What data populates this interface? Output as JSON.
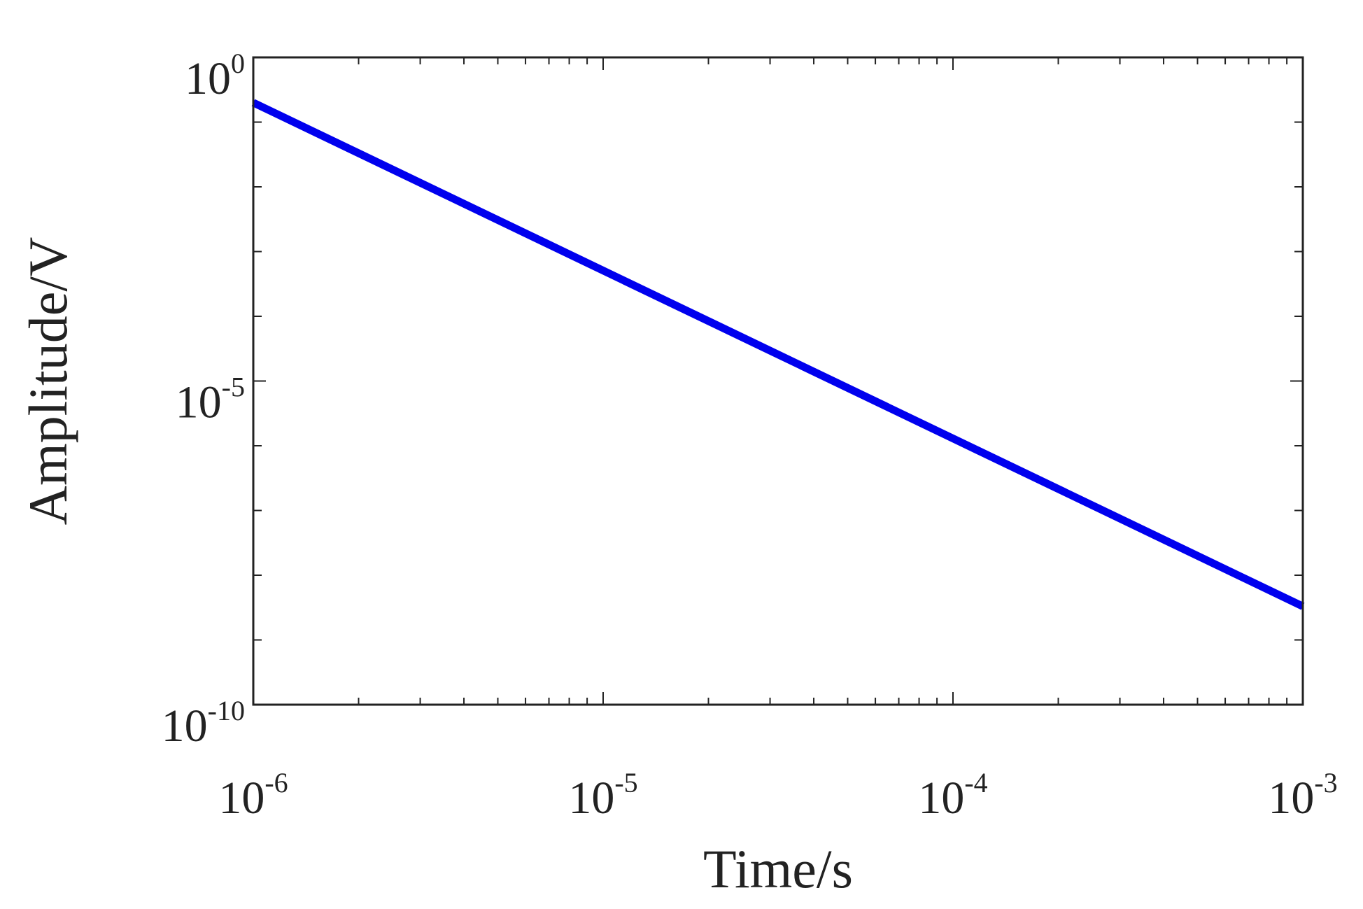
{
  "chart_data": {
    "type": "line",
    "title": "",
    "xlabel": "Time/s",
    "ylabel": "Amplitude/V",
    "xscale": "log",
    "yscale": "log",
    "xlim": [
      1e-06,
      0.001
    ],
    "ylim": [
      1e-10,
      1
    ],
    "grid": false,
    "legend": "none",
    "x_ticks": [
      {
        "value": 1e-06,
        "base": "10",
        "exp": "-6"
      },
      {
        "value": 1e-05,
        "base": "10",
        "exp": "-5"
      },
      {
        "value": 0.0001,
        "base": "10",
        "exp": "-4"
      },
      {
        "value": 0.001,
        "base": "10",
        "exp": "-3"
      }
    ],
    "y_ticks": [
      {
        "value": 1,
        "base": "10",
        "exp": "0"
      },
      {
        "value": 1e-05,
        "base": "10",
        "exp": "-5"
      },
      {
        "value": 1e-10,
        "base": "10",
        "exp": "-10"
      }
    ],
    "series": [
      {
        "color": "#0000ee",
        "x": [
          1e-06,
          0.001
        ],
        "y": [
          0.2,
          3.3e-09
        ]
      }
    ]
  }
}
